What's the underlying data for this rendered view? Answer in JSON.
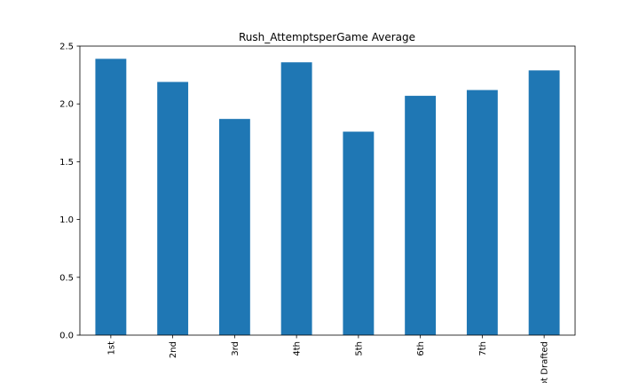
{
  "chart_data": {
    "type": "bar",
    "title": "Rush_AttemptsperGame Average",
    "xlabel": "",
    "ylabel": "",
    "categories": [
      "1st",
      "2nd",
      "3rd",
      "4th",
      "5th",
      "6th",
      "7th",
      "Not Drafted"
    ],
    "values": [
      2.39,
      2.19,
      1.87,
      2.36,
      1.76,
      2.07,
      2.12,
      2.29
    ],
    "ylim": [
      0.0,
      2.5
    ],
    "yticks": [
      "0.0",
      "0.5",
      "1.0",
      "1.5",
      "2.0",
      "2.5"
    ],
    "bar_color": "#1f77b4",
    "grid": false,
    "legend": false
  }
}
